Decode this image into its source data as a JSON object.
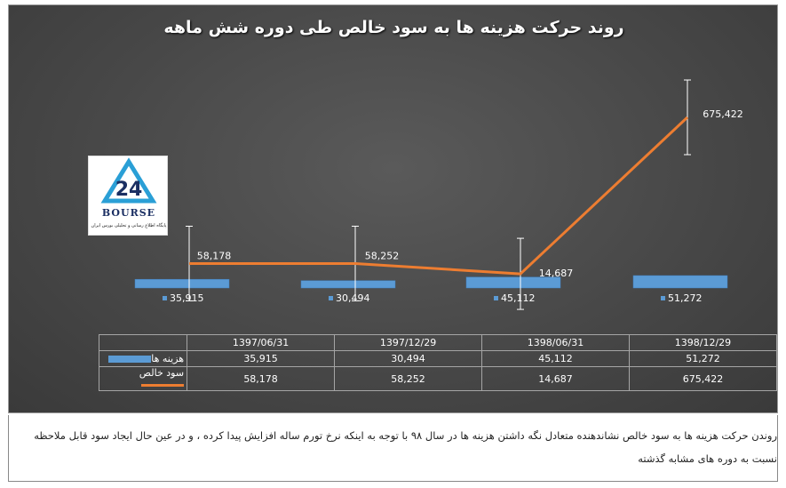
{
  "chart_data": {
    "type": "bar",
    "title": "روند حرکت هزینه ها به سود خالص طی دوره شش ماهه",
    "categories": [
      "1397/06/31",
      "1397/12/29",
      "1398/06/31",
      "1398/12/29"
    ],
    "series": [
      {
        "name": "هزینه ها",
        "type": "bar",
        "values": [
          35915,
          30494,
          45112,
          51272
        ],
        "labels": [
          "35,915",
          "30,494",
          "45,112",
          "51,272"
        ]
      },
      {
        "name": "سود خالص",
        "type": "line",
        "values": [
          58178,
          58252,
          14687,
          675422
        ],
        "labels": [
          "58,178",
          "58,252",
          "14,687",
          "675,422"
        ]
      }
    ],
    "grid": false,
    "legend": "data-table",
    "error_bars": true
  },
  "colors": {
    "bar": "#5b9bd5",
    "line": "#ed7d31",
    "background": "#484848"
  },
  "logo": {
    "word": "BOURSE",
    "subtitle": "پایگاه اطلاع رسانی و تحلیلی بورس ایران"
  },
  "note": "روندن حرکت هزینه ها به سود خالص نشاندهنده متعادل نگه داشتن هزینه ها در سال ۹۸ با توجه به اینکه نرخ تورم ساله افزایش پیدا کرده ، و در عین حال ایجاد سود قابل ملاحظه نسبت به دوره های مشابه گذشته"
}
